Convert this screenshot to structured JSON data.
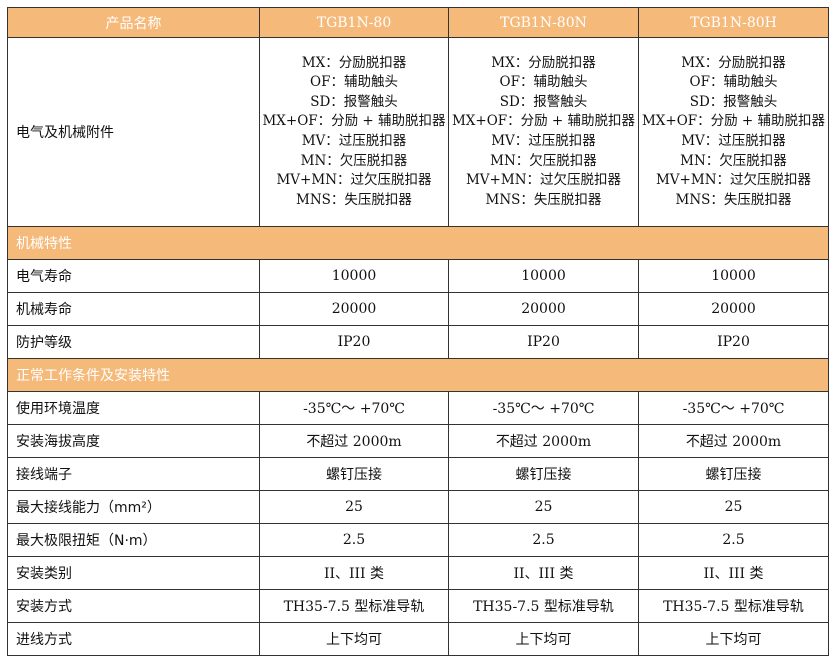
{
  "header": {
    "label": "产品名称",
    "models": [
      "TGB1N-80",
      "TGB1N-80N",
      "TGB1N-80H"
    ]
  },
  "accessories": {
    "label": "电气及机械附件",
    "items": [
      "MX：分励脱扣器",
      "OF：辅助触头",
      "SD：报警触头",
      "MX+OF：分励 + 辅助脱扣器",
      "MV：过压脱扣器",
      "MN：欠压脱扣器",
      "MV+MN：过欠压脱扣器",
      "MNS：失压脱扣器"
    ]
  },
  "section1": {
    "title": "机械特性",
    "rows": [
      {
        "label": "电气寿命",
        "value": "10000"
      },
      {
        "label": "机械寿命",
        "value": "20000"
      },
      {
        "label": "防护等级",
        "value": "IP20"
      }
    ]
  },
  "section2": {
    "title": "正常工作条件及安装特性",
    "rows": [
      {
        "label": "使用环境温度",
        "value": "-35℃～ +70℃"
      },
      {
        "label": "安装海拔高度",
        "value": "不超过 2000m"
      },
      {
        "label": "接线端子",
        "value": "螺钉压接"
      },
      {
        "label": "最大接线能力（mm²）",
        "value": "25"
      },
      {
        "label": "最大极限扭矩（N·m）",
        "value": "2.5"
      },
      {
        "label": "安装类别",
        "value": "II、III 类"
      },
      {
        "label": "安装方式",
        "value": "TH35-7.5 型标准导轨"
      },
      {
        "label": "进线方式",
        "value": "上下均可"
      }
    ]
  }
}
